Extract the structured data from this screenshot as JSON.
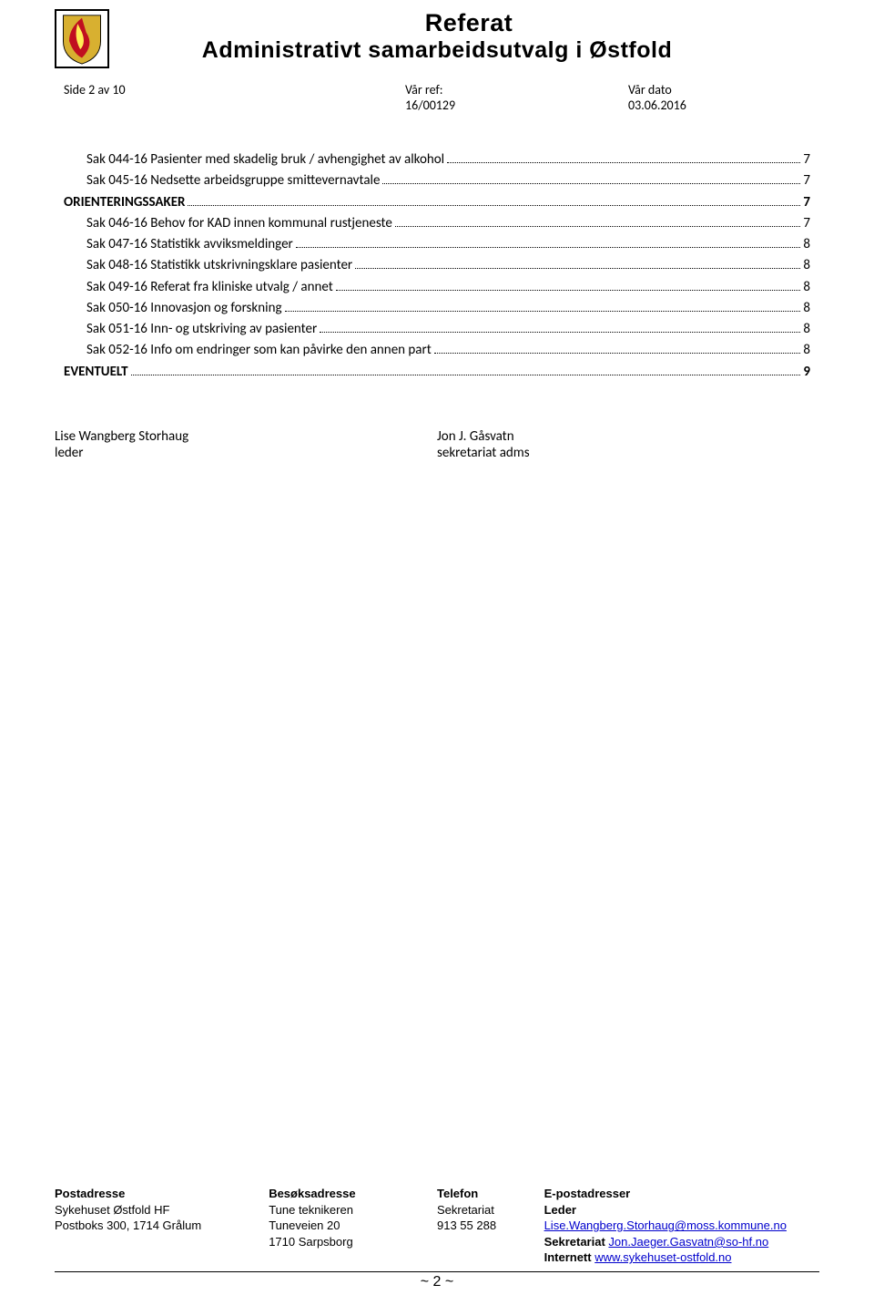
{
  "header": {
    "title_main": "Referat",
    "title_sub": "Administrativt samarbeidsutvalg i Østfold"
  },
  "meta": {
    "side": "Side 2 av 10",
    "ref_label": "Vår ref:",
    "ref_value": "16/00129",
    "dato_label": "Vår dato",
    "dato_value": "03.06.2016"
  },
  "toc": [
    {
      "text": "Sak 044-16 Pasienter med skadelig bruk / avhengighet av alkohol",
      "page": "7",
      "indent": true,
      "bold": false
    },
    {
      "text": "Sak 045-16 Nedsette arbeidsgruppe smittevernavtale",
      "page": "7",
      "indent": true,
      "bold": false
    },
    {
      "text": "ORIENTERINGSSAKER",
      "page": "7",
      "indent": false,
      "bold": true
    },
    {
      "text": "Sak 046-16 Behov for KAD innen kommunal rustjeneste",
      "page": "7",
      "indent": true,
      "bold": false
    },
    {
      "text": "Sak 047-16 Statistikk avviksmeldinger",
      "page": "8",
      "indent": true,
      "bold": false
    },
    {
      "text": "Sak 048-16 Statistikk utskrivningsklare pasienter",
      "page": "8",
      "indent": true,
      "bold": false
    },
    {
      "text": "Sak 049-16 Referat fra kliniske utvalg / annet",
      "page": "8",
      "indent": true,
      "bold": false
    },
    {
      "text": "Sak 050-16 Innovasjon og forskning",
      "page": "8",
      "indent": true,
      "bold": false
    },
    {
      "text": "Sak 051-16 Inn- og utskriving av pasienter",
      "page": "8",
      "indent": true,
      "bold": false
    },
    {
      "text": "Sak 052-16 Info om endringer som kan påvirke den annen part",
      "page": "8",
      "indent": true,
      "bold": false
    },
    {
      "text": "EVENTUELT",
      "page": "9",
      "indent": false,
      "bold": true
    }
  ],
  "signatures": {
    "left_name": "Lise Wangberg Storhaug",
    "left_role": "leder",
    "right_name": "Jon J. Gåsvatn",
    "right_role": "sekretariat adms"
  },
  "footer": {
    "col1_head": "Postadresse",
    "col1_l1": "Sykehuset Østfold HF",
    "col1_l2": "Postboks 300, 1714 Grålum",
    "col2_head": "Besøksadresse",
    "col2_l1": "Tune teknikeren",
    "col2_l2": "Tuneveien 20",
    "col2_l3": "1710 Sarpsborg",
    "col3_head": "Telefon",
    "col3_l1": "Sekretariat",
    "col3_l2": "913 55 288",
    "col4_head": "E-postadresser",
    "col4_leder_label": "Leder ",
    "col4_leder_link": "Lise.Wangberg.Storhaug@moss.kommune.no",
    "col4_sekr_label": "Sekretariat ",
    "col4_sekr_link": "Jon.Jaeger.Gasvatn@so-hf.no",
    "col4_int_label": "Internett ",
    "col4_int_link": "www.sykehuset-ostfold.no",
    "pagenum": "~ 2 ~"
  }
}
